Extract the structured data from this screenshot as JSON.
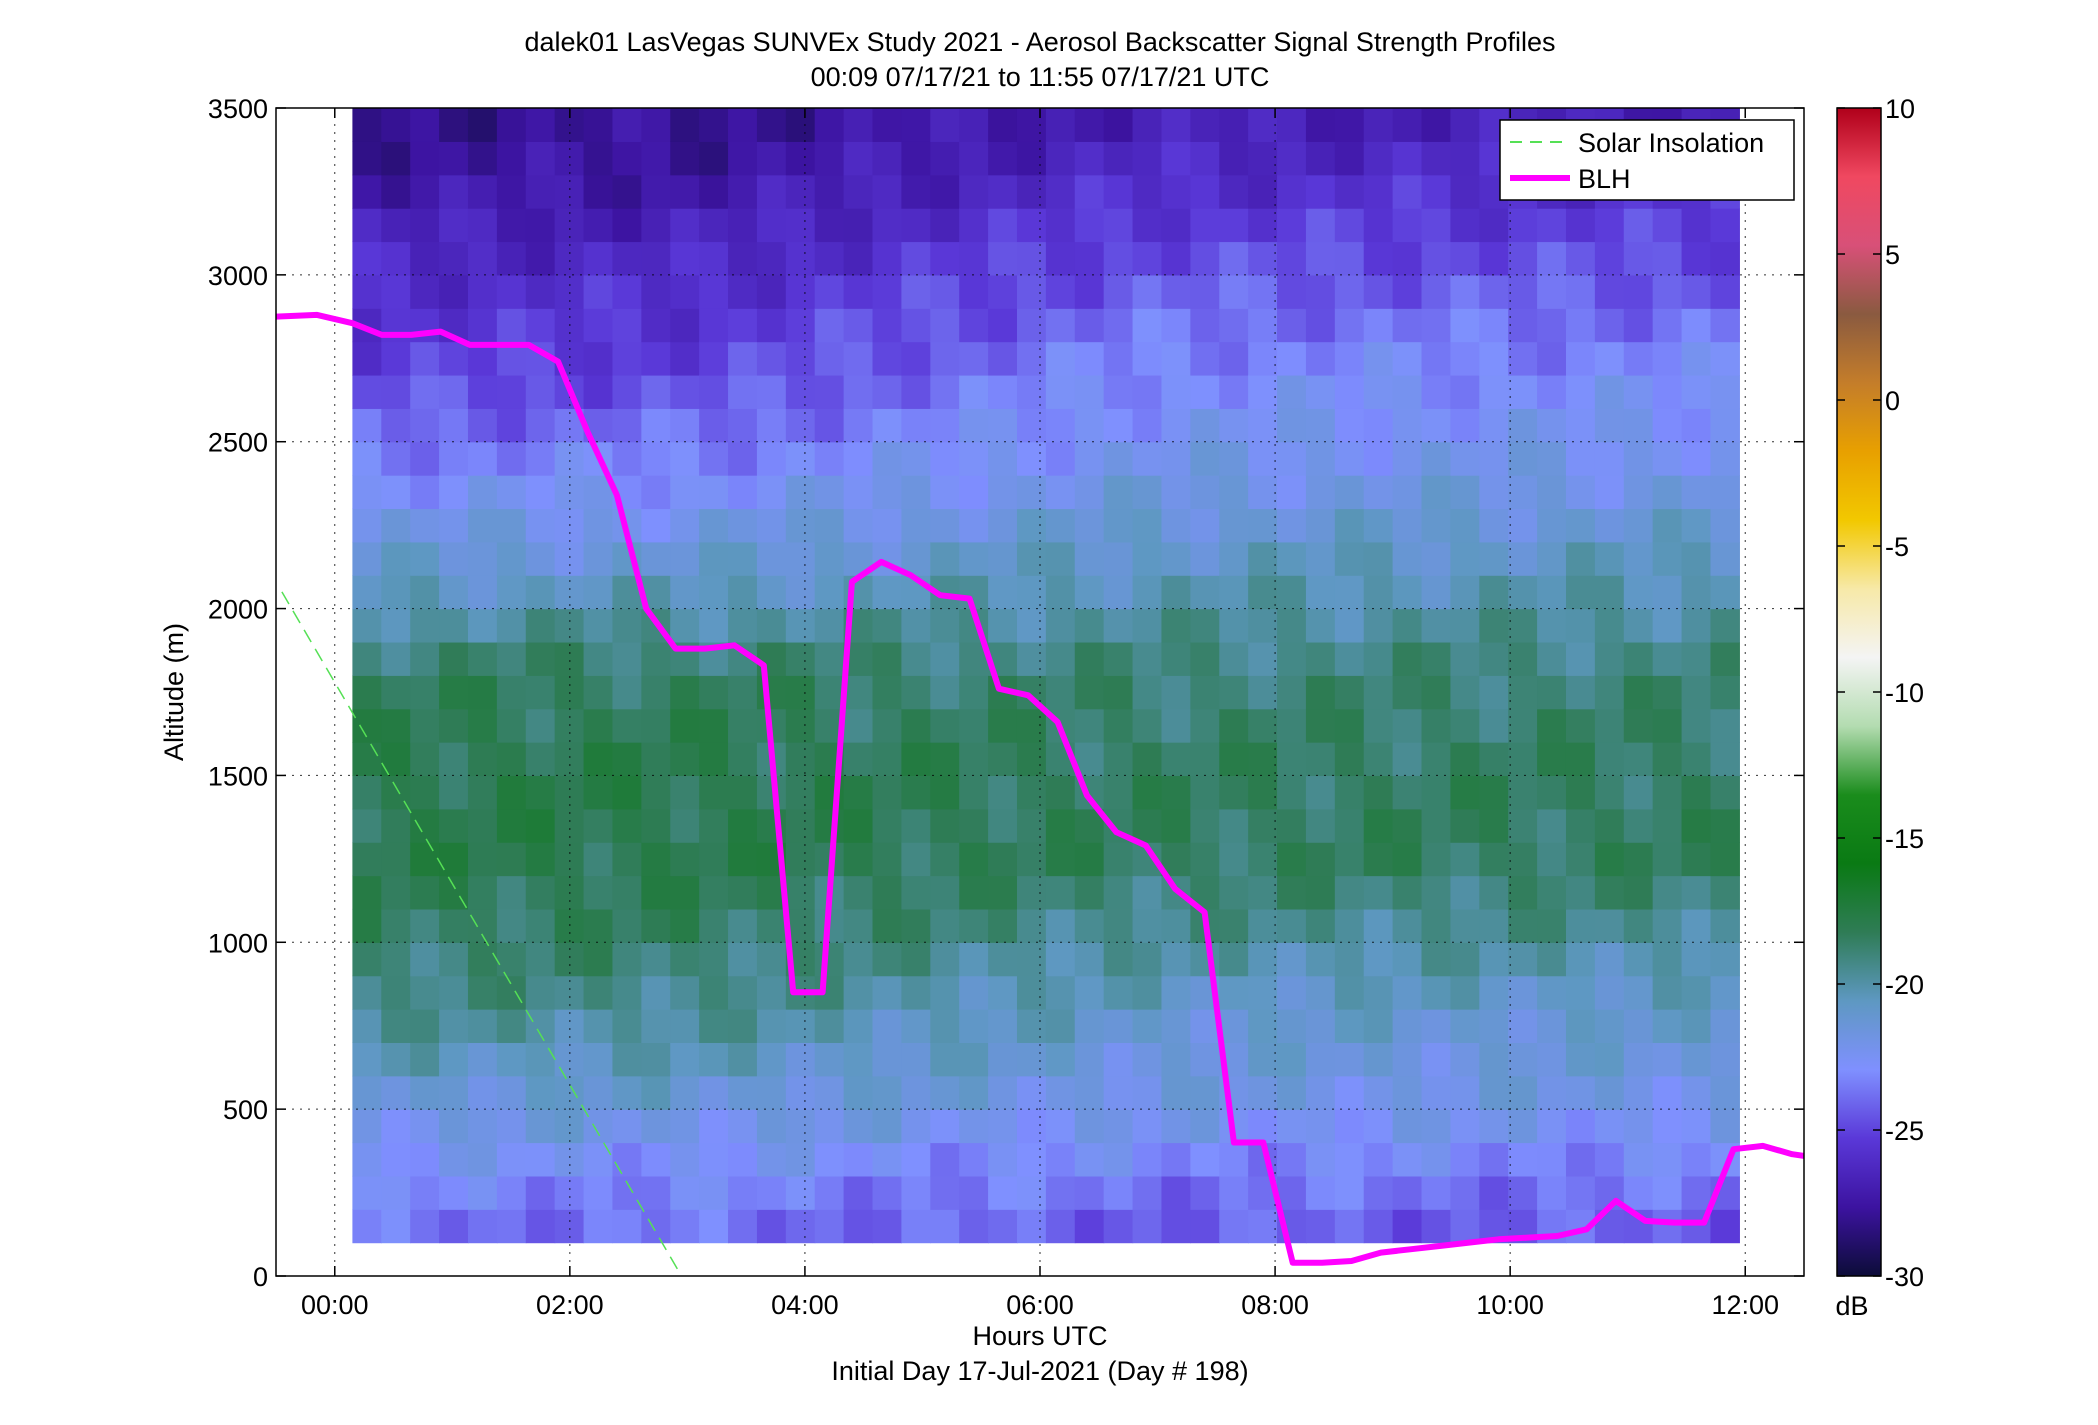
{
  "chart_data": {
    "type": "heatmap",
    "title_line1": "dalek01 LasVegas SUNVEx Study 2021 - Aerosol Backscatter Signal Strength Profiles",
    "title_line2": "00:09 07/17/21 to 11:55 07/17/21  UTC",
    "xlabel": "Hours UTC",
    "xlabel2": "Initial Day 17-Jul-2021 (Day # 198)",
    "ylabel": "Altitude (m)",
    "xlim": [
      -0.5,
      12.5
    ],
    "ylim": [
      0,
      3500
    ],
    "x_ticks": [
      0,
      2,
      4,
      6,
      8,
      10,
      12
    ],
    "x_tick_labels": [
      "00:00",
      "02:00",
      "04:00",
      "06:00",
      "08:00",
      "10:00",
      "12:00"
    ],
    "y_ticks": [
      0,
      500,
      1000,
      1500,
      2000,
      2500,
      3000,
      3500
    ],
    "y_tick_labels": [
      "0",
      "500",
      "1000",
      "1500",
      "2000",
      "2500",
      "3000",
      "3500"
    ],
    "grid": "dotted",
    "legend_position": "top-right",
    "legend": [
      {
        "label": "Solar Insolation",
        "color": "#55e055",
        "style": "dashed"
      },
      {
        "label": "BLH",
        "color": "#ff00ff",
        "style": "solid"
      }
    ],
    "colorbar": {
      "label": "dB",
      "range": [
        -30,
        10
      ],
      "ticks": [
        10,
        5,
        0,
        -5,
        -10,
        -15,
        -20,
        -25,
        -30
      ],
      "tick_labels": [
        "10",
        "5",
        "0",
        "-5",
        "-10",
        "-15",
        "-20",
        "-25",
        "-30"
      ],
      "gradient": [
        "#0c0c38",
        "#3c13a0",
        "#5a38d8",
        "#7f90ff",
        "#5e98c2",
        "#2f7c56",
        "#0a7a14",
        "#1a8c1c",
        "#b3dcb0",
        "#f4f4f4",
        "#f7e9a8",
        "#f2c800",
        "#e8a000",
        "#c47d2a",
        "#8a5a40",
        "#d85078",
        "#f04860",
        "#b0001a"
      ]
    },
    "heatmap": {
      "time_start": 0.15,
      "time_end": 11.95,
      "alt_start": 100,
      "alt_end": 3500,
      "units": "dB",
      "profile": {
        "alt": [
          100,
          300,
          500,
          800,
          1050,
          1250,
          1500,
          1800,
          2100,
          2400,
          2700,
          3000,
          3300,
          3500
        ],
        "db_night": [
          -24,
          -23,
          -21.5,
          -19.5,
          -18.5,
          -18,
          -18,
          -18.5,
          -21,
          -23,
          -25,
          -26,
          -27.5,
          -28
        ],
        "db_day": [
          -24.5,
          -23.5,
          -22,
          -21,
          -19.5,
          -18.5,
          -18.5,
          -19,
          -20.5,
          -22,
          -23,
          -24.5,
          -26,
          -27
        ]
      }
    },
    "series": [
      {
        "name": "BLH",
        "x": [
          -0.5,
          -0.15,
          0.15,
          0.4,
          0.65,
          0.9,
          1.15,
          1.4,
          1.65,
          1.9,
          2.15,
          2.4,
          2.65,
          2.9,
          3.15,
          3.4,
          3.65,
          3.9,
          4.15,
          4.4,
          4.65,
          4.9,
          5.15,
          5.4,
          5.65,
          5.9,
          6.15,
          6.4,
          6.65,
          6.9,
          7.15,
          7.4,
          7.65,
          7.9,
          8.15,
          8.4,
          8.65,
          8.9,
          9.15,
          9.4,
          9.65,
          9.9,
          10.15,
          10.4,
          10.65,
          10.9,
          11.15,
          11.4,
          11.65,
          11.9,
          12.15,
          12.4,
          12.5
        ],
        "y": [
          2875,
          2880,
          2855,
          2820,
          2820,
          2830,
          2790,
          2790,
          2790,
          2740,
          2530,
          2340,
          2000,
          1880,
          1880,
          1890,
          1830,
          850,
          850,
          2080,
          2140,
          2100,
          2040,
          2030,
          1760,
          1740,
          1660,
          1440,
          1330,
          1290,
          1160,
          1090,
          400,
          400,
          40,
          40,
          45,
          70,
          80,
          90,
          100,
          110,
          115,
          120,
          140,
          225,
          165,
          160,
          160,
          380,
          390,
          365,
          360
        ]
      },
      {
        "name": "Solar Insolation",
        "x": [
          -0.45,
          2.95
        ],
        "y": [
          2050,
          0
        ]
      }
    ]
  }
}
